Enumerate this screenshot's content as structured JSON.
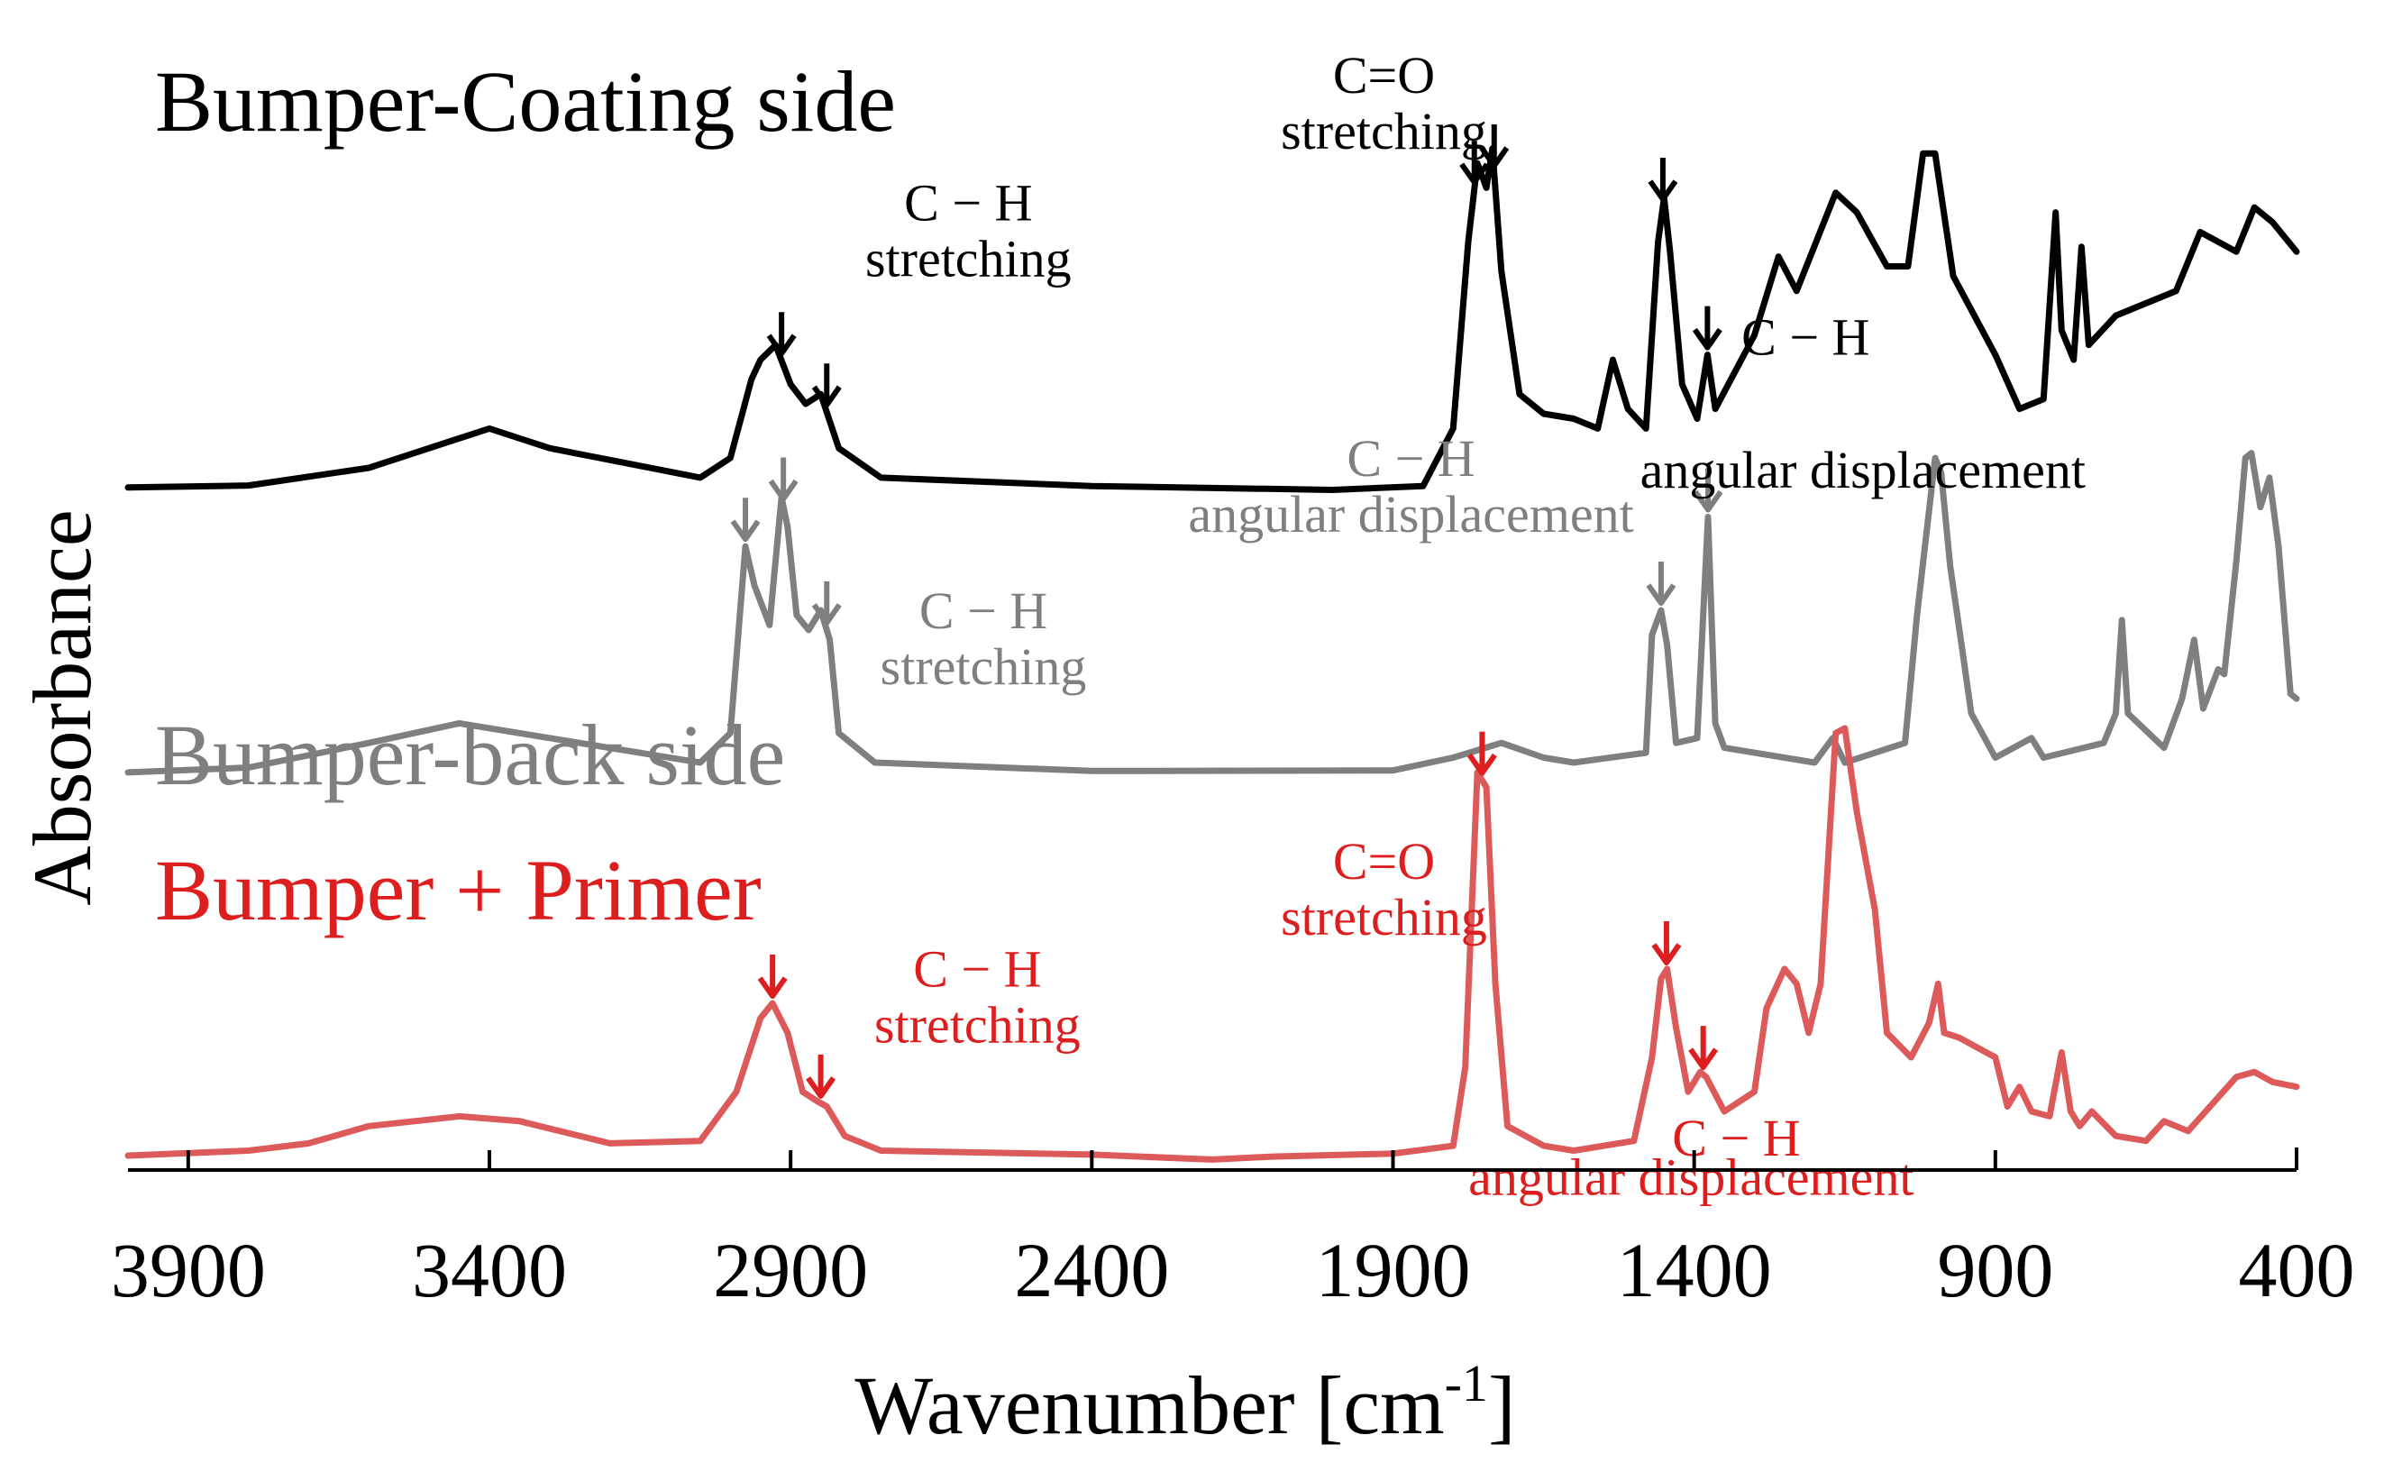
{
  "chart_data": {
    "type": "line",
    "title": "",
    "xlabel": "Wavenumber [cm-1]",
    "xlabel_main": "Wavenumber [cm",
    "xlabel_sup": "-1",
    "xlabel_close": "]",
    "ylabel": "Absorbance",
    "xlim": [
      4000,
      400
    ],
    "x_reversed": true,
    "y_ticks_shown": false,
    "x_ticks": [
      3900,
      3400,
      2900,
      2400,
      1900,
      1400,
      900,
      400
    ],
    "x_tick_labels": [
      "3900",
      "3400",
      "2900",
      "2400",
      "1900",
      "1400",
      "900",
      "400"
    ],
    "series": [
      {
        "name": "Bumper-Coating side",
        "color": "#000000",
        "offset": 1.36,
        "points": [
          [
            4000,
            0.0
          ],
          [
            3800,
            0.004
          ],
          [
            3600,
            0.04
          ],
          [
            3400,
            0.12
          ],
          [
            3300,
            0.08
          ],
          [
            3050,
            0.02
          ],
          [
            3000,
            0.06
          ],
          [
            2965,
            0.22
          ],
          [
            2950,
            0.26
          ],
          [
            2925,
            0.29
          ],
          [
            2900,
            0.21
          ],
          [
            2875,
            0.17
          ],
          [
            2850,
            0.19
          ],
          [
            2820,
            0.08
          ],
          [
            2750,
            0.02
          ],
          [
            2400,
            0.003
          ],
          [
            2000,
            -0.005
          ],
          [
            1850,
            0.003
          ],
          [
            1800,
            0.12
          ],
          [
            1775,
            0.5
          ],
          [
            1760,
            0.66
          ],
          [
            1745,
            0.61
          ],
          [
            1735,
            0.69
          ],
          [
            1720,
            0.44
          ],
          [
            1690,
            0.19
          ],
          [
            1650,
            0.15
          ],
          [
            1600,
            0.14
          ],
          [
            1560,
            0.12
          ],
          [
            1535,
            0.26
          ],
          [
            1510,
            0.16
          ],
          [
            1480,
            0.12
          ],
          [
            1460,
            0.5
          ],
          [
            1450,
            0.59
          ],
          [
            1440,
            0.48
          ],
          [
            1420,
            0.21
          ],
          [
            1395,
            0.14
          ],
          [
            1378,
            0.27
          ],
          [
            1365,
            0.16
          ],
          [
            1300,
            0.31
          ],
          [
            1260,
            0.47
          ],
          [
            1230,
            0.4
          ],
          [
            1165,
            0.6
          ],
          [
            1130,
            0.56
          ],
          [
            1080,
            0.45
          ],
          [
            1045,
            0.45
          ],
          [
            1020,
            0.68
          ],
          [
            1000,
            0.68
          ],
          [
            970,
            0.43
          ],
          [
            900,
            0.27
          ],
          [
            860,
            0.16
          ],
          [
            820,
            0.18
          ],
          [
            800,
            0.56
          ],
          [
            790,
            0.32
          ],
          [
            770,
            0.26
          ],
          [
            757,
            0.49
          ],
          [
            745,
            0.29
          ],
          [
            700,
            0.35
          ],
          [
            600,
            0.4
          ],
          [
            560,
            0.52
          ],
          [
            500,
            0.48
          ],
          [
            470,
            0.57
          ],
          [
            440,
            0.54
          ],
          [
            400,
            0.48
          ]
        ]
      },
      {
        "name": "Bumper-back side",
        "color": "#7f7f7f",
        "offset": 0.78,
        "points": [
          [
            4000,
            0.0
          ],
          [
            3800,
            0.01
          ],
          [
            3600,
            0.06
          ],
          [
            3450,
            0.1
          ],
          [
            3300,
            0.07
          ],
          [
            3050,
            0.02
          ],
          [
            3000,
            0.08
          ],
          [
            2975,
            0.46
          ],
          [
            2960,
            0.38
          ],
          [
            2935,
            0.3
          ],
          [
            2915,
            0.56
          ],
          [
            2905,
            0.5
          ],
          [
            2890,
            0.32
          ],
          [
            2870,
            0.29
          ],
          [
            2850,
            0.33
          ],
          [
            2835,
            0.27
          ],
          [
            2820,
            0.08
          ],
          [
            2760,
            0.02
          ],
          [
            2400,
            0.003
          ],
          [
            1900,
            0.004
          ],
          [
            1800,
            0.03
          ],
          [
            1720,
            0.06
          ],
          [
            1650,
            0.03
          ],
          [
            1600,
            0.02
          ],
          [
            1480,
            0.04
          ],
          [
            1470,
            0.28
          ],
          [
            1455,
            0.33
          ],
          [
            1445,
            0.26
          ],
          [
            1430,
            0.06
          ],
          [
            1395,
            0.07
          ],
          [
            1377,
            0.52
          ],
          [
            1365,
            0.1
          ],
          [
            1350,
            0.05
          ],
          [
            1200,
            0.02
          ],
          [
            1170,
            0.07
          ],
          [
            1150,
            0.02
          ],
          [
            1050,
            0.06
          ],
          [
            1030,
            0.32
          ],
          [
            1000,
            0.64
          ],
          [
            990,
            0.61
          ],
          [
            975,
            0.42
          ],
          [
            955,
            0.25
          ],
          [
            940,
            0.12
          ],
          [
            900,
            0.03
          ],
          [
            840,
            0.07
          ],
          [
            820,
            0.03
          ],
          [
            720,
            0.06
          ],
          [
            700,
            0.12
          ],
          [
            690,
            0.31
          ],
          [
            680,
            0.12
          ],
          [
            620,
            0.05
          ],
          [
            590,
            0.15
          ],
          [
            570,
            0.27
          ],
          [
            555,
            0.13
          ],
          [
            530,
            0.21
          ],
          [
            520,
            0.2
          ],
          [
            500,
            0.43
          ],
          [
            485,
            0.64
          ],
          [
            475,
            0.65
          ],
          [
            460,
            0.54
          ],
          [
            445,
            0.6
          ],
          [
            430,
            0.46
          ],
          [
            410,
            0.16
          ],
          [
            400,
            0.15
          ]
        ]
      },
      {
        "name": "Bumper + Primer",
        "color": "#dc5a5a",
        "offset": 0.0,
        "points": [
          [
            4000,
            0.0
          ],
          [
            3800,
            0.01
          ],
          [
            3700,
            0.025
          ],
          [
            3600,
            0.06
          ],
          [
            3450,
            0.08
          ],
          [
            3350,
            0.07
          ],
          [
            3200,
            0.025
          ],
          [
            3050,
            0.03
          ],
          [
            2990,
            0.13
          ],
          [
            2950,
            0.28
          ],
          [
            2930,
            0.31
          ],
          [
            2905,
            0.25
          ],
          [
            2880,
            0.13
          ],
          [
            2855,
            0.11
          ],
          [
            2840,
            0.1
          ],
          [
            2810,
            0.04
          ],
          [
            2750,
            0.01
          ],
          [
            2400,
            0.002
          ],
          [
            2200,
            -0.008
          ],
          [
            2100,
            -0.002
          ],
          [
            1900,
            0.004
          ],
          [
            1800,
            0.02
          ],
          [
            1780,
            0.18
          ],
          [
            1760,
            0.78
          ],
          [
            1745,
            0.75
          ],
          [
            1730,
            0.35
          ],
          [
            1710,
            0.06
          ],
          [
            1650,
            0.02
          ],
          [
            1600,
            0.01
          ],
          [
            1500,
            0.03
          ],
          [
            1470,
            0.2
          ],
          [
            1455,
            0.36
          ],
          [
            1445,
            0.38
          ],
          [
            1430,
            0.26
          ],
          [
            1410,
            0.13
          ],
          [
            1390,
            0.17
          ],
          [
            1380,
            0.16
          ],
          [
            1350,
            0.09
          ],
          [
            1300,
            0.13
          ],
          [
            1280,
            0.3
          ],
          [
            1250,
            0.38
          ],
          [
            1230,
            0.35
          ],
          [
            1210,
            0.25
          ],
          [
            1190,
            0.35
          ],
          [
            1165,
            0.86
          ],
          [
            1150,
            0.87
          ],
          [
            1130,
            0.7
          ],
          [
            1100,
            0.5
          ],
          [
            1080,
            0.25
          ],
          [
            1040,
            0.2
          ],
          [
            1010,
            0.27
          ],
          [
            995,
            0.35
          ],
          [
            985,
            0.25
          ],
          [
            960,
            0.24
          ],
          [
            900,
            0.2
          ],
          [
            880,
            0.1
          ],
          [
            860,
            0.14
          ],
          [
            840,
            0.09
          ],
          [
            810,
            0.08
          ],
          [
            790,
            0.21
          ],
          [
            775,
            0.09
          ],
          [
            760,
            0.06
          ],
          [
            740,
            0.09
          ],
          [
            700,
            0.04
          ],
          [
            650,
            0.03
          ],
          [
            620,
            0.07
          ],
          [
            580,
            0.05
          ],
          [
            500,
            0.16
          ],
          [
            470,
            0.17
          ],
          [
            440,
            0.15
          ],
          [
            400,
            0.14
          ]
        ]
      }
    ],
    "annotations": [
      {
        "series": 0,
        "text": [
          "C − H",
          "stretching"
        ],
        "color": "#000000",
        "at_x": 2605,
        "at_y": 0.43
      },
      {
        "series": 0,
        "text": [
          "C=O",
          "stretching"
        ],
        "color": "#000000",
        "at_x": 1915,
        "at_y": 0.69
      },
      {
        "series": 0,
        "text": [
          "C − H"
        ],
        "color": "#000000",
        "at_x": 1215,
        "at_y": 0.27
      },
      {
        "series": 0,
        "text": [
          "angular displacement"
        ],
        "color": "#000000",
        "at_x": 1120,
        "at_y": 0.0
      },
      {
        "series": 1,
        "text": [
          "C − H",
          "stretching"
        ],
        "color": "#7f7f7f",
        "at_x": 2580,
        "at_y": 0.18
      },
      {
        "series": 1,
        "text": [
          "C − H",
          "angular displacement"
        ],
        "color": "#7f7f7f",
        "at_x": 1870,
        "at_y": 0.49
      },
      {
        "series": 2,
        "text": [
          "C − H",
          "stretching"
        ],
        "color": "#dc1e1e",
        "at_x": 2590,
        "at_y": 0.23
      },
      {
        "series": 2,
        "text": [
          "C=O",
          "stretching"
        ],
        "color": "#dc1e1e",
        "at_x": 1915,
        "at_y": 0.45
      },
      {
        "series": 2,
        "text": [
          "C − H"
        ],
        "color": "#dc1e1e",
        "at_x": 1330,
        "at_y": 0.0
      },
      {
        "series": 2,
        "text": [
          "angular displacement"
        ],
        "color": "#dc1e1e",
        "at_x": 1405,
        "at_y": -0.08
      }
    ],
    "peak_arrows": [
      {
        "series": 0,
        "x": 2915,
        "color": "#000000"
      },
      {
        "series": 0,
        "x": 2840,
        "color": "#000000"
      },
      {
        "series": 0,
        "x": 1765,
        "color": "#000000"
      },
      {
        "series": 0,
        "x": 1732,
        "color": "#000000"
      },
      {
        "series": 0,
        "x": 1452,
        "color": "#000000"
      },
      {
        "series": 0,
        "x": 1378,
        "color": "#000000"
      },
      {
        "series": 1,
        "x": 2975,
        "color": "#7f7f7f"
      },
      {
        "series": 1,
        "x": 2912,
        "color": "#7f7f7f"
      },
      {
        "series": 1,
        "x": 2840,
        "color": "#7f7f7f"
      },
      {
        "series": 1,
        "x": 1455,
        "color": "#7f7f7f"
      },
      {
        "series": 1,
        "x": 1377,
        "color": "#7f7f7f"
      },
      {
        "series": 2,
        "x": 2930,
        "color": "#dc1e1e"
      },
      {
        "series": 2,
        "x": 2850,
        "color": "#dc1e1e"
      },
      {
        "series": 2,
        "x": 1752,
        "color": "#dc1e1e"
      },
      {
        "series": 2,
        "x": 1446,
        "color": "#dc1e1e"
      },
      {
        "series": 2,
        "x": 1385,
        "color": "#dc1e1e"
      }
    ],
    "series_labels": [
      {
        "text": "Bumper-Coating side",
        "color": "#000000"
      },
      {
        "text": "Bumper-back side",
        "color": "#7f7f7f"
      },
      {
        "text": "Bumper + Primer",
        "color": "#dc1e1e"
      }
    ]
  }
}
